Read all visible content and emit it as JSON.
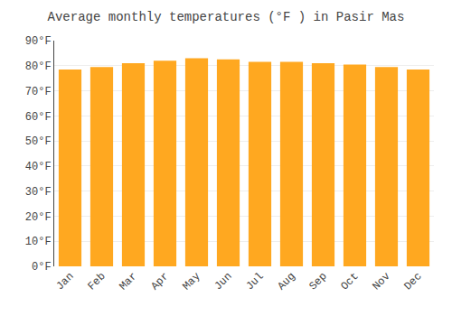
{
  "chart_data": {
    "type": "bar",
    "title": "Average monthly temperatures (°F ) in Pasir Mas",
    "categories": [
      "Jan",
      "Feb",
      "Mar",
      "Apr",
      "May",
      "Jun",
      "Jul",
      "Aug",
      "Sep",
      "Oct",
      "Nov",
      "Dec"
    ],
    "values": [
      78.5,
      79.5,
      81.0,
      82.0,
      83.0,
      82.5,
      81.5,
      81.5,
      81.0,
      80.5,
      79.5,
      78.5
    ],
    "color": "#FFA820",
    "ylim": [
      0,
      90
    ],
    "yticks": [
      {
        "value": 0,
        "label": "0°F"
      },
      {
        "value": 10,
        "label": "10°F"
      },
      {
        "value": 20,
        "label": "20°F"
      },
      {
        "value": 30,
        "label": "30°F"
      },
      {
        "value": 40,
        "label": "40°F"
      },
      {
        "value": 50,
        "label": "50°F"
      },
      {
        "value": 60,
        "label": "60°F"
      },
      {
        "value": 70,
        "label": "70°F"
      },
      {
        "value": 80,
        "label": "80°F"
      },
      {
        "value": 90,
        "label": "90°F"
      }
    ],
    "grid": true
  }
}
